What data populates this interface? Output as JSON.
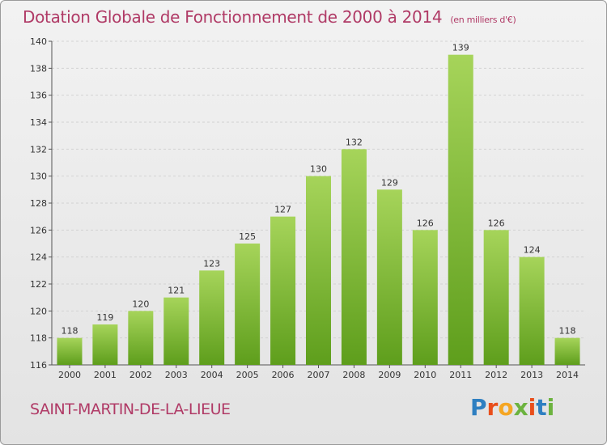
{
  "title": "Dotation Globale de Fonctionnement de 2000 à 2014",
  "unit_note": "(en milliers d'€)",
  "place": "SAINT-MARTIN-DE-LA-LIEUE",
  "logo": {
    "text": "Proxiti",
    "colors": [
      "#2e7fc1",
      "#e94e1b",
      "#f5a623",
      "#6cb33f",
      "#e94e1b",
      "#2e7fc1",
      "#6cb33f"
    ]
  },
  "colors": {
    "bar_light": "#a6d45a",
    "bar_dark": "#5e9e1c",
    "title": "#b03a66"
  },
  "chart_data": {
    "type": "bar",
    "title": "Dotation Globale de Fonctionnement de 2000 à 2014",
    "subtitle": "(en milliers d'€)",
    "categories": [
      "2000",
      "2001",
      "2002",
      "2003",
      "2004",
      "2005",
      "2006",
      "2007",
      "2008",
      "2009",
      "2010",
      "2011",
      "2012",
      "2013",
      "2014"
    ],
    "values": [
      118,
      119,
      120,
      121,
      123,
      125,
      127,
      130,
      132,
      129,
      126,
      139,
      126,
      124,
      118
    ],
    "ylim": [
      116,
      140
    ],
    "yticks": [
      116,
      118,
      120,
      122,
      124,
      126,
      128,
      130,
      132,
      134,
      136,
      138,
      140
    ],
    "grid": true,
    "legend": "none"
  }
}
